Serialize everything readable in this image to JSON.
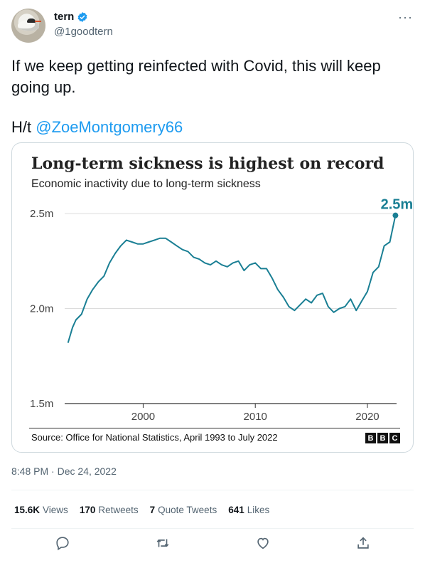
{
  "author": {
    "name": "tern",
    "handle": "@1goodtern",
    "verified": true
  },
  "tweet": {
    "text": "If we keep getting reinfected with Covid, this will keep going up.",
    "ht_prefix": "H/t ",
    "mention": "@ZoeMontgomery66",
    "timestamp": "8:48 PM · Dec 24, 2022"
  },
  "chart_card": {
    "title": "Long-term sickness is highest on record",
    "subtitle": "Economic inactivity due to long-term sickness",
    "source": "Source: Office for National Statistics, April 1993 to July 2022",
    "logo_letters": [
      "B",
      "B",
      "C"
    ],
    "line_color": "#1a7f94"
  },
  "chart_data": {
    "type": "line",
    "title": "Long-term sickness is highest on record",
    "subtitle": "Economic inactivity due to long-term sickness",
    "y_tick_labels": [
      "2.5m",
      "2.0m",
      "1.5m"
    ],
    "y_ticks": [
      2.5,
      2.0,
      1.5
    ],
    "x_tick_labels": [
      "2000",
      "2010",
      "2020"
    ],
    "x_ticks": [
      2000,
      2010,
      2020
    ],
    "xlim": [
      1993,
      2022.6
    ],
    "ylim": [
      1.5,
      2.5
    ],
    "grid": "horizontal",
    "annotation": {
      "label": "2.5m",
      "x": 2022.5,
      "y": 2.49
    },
    "series": [
      {
        "x": [
          1993.3,
          1993.7,
          1994.0,
          1994.5,
          1995.0,
          1995.5,
          1996.0,
          1996.5,
          1997.0,
          1997.5,
          1998.0,
          1998.5,
          1999.0,
          1999.5,
          2000.0,
          2000.5,
          2001.0,
          2001.5,
          2002.0,
          2002.5,
          2003.0,
          2003.5,
          2004.0,
          2004.5,
          2005.0,
          2005.5,
          2006.0,
          2006.5,
          2007.0,
          2007.5,
          2008.0,
          2008.5,
          2009.0,
          2009.5,
          2010.0,
          2010.5,
          2011.0,
          2011.5,
          2012.0,
          2012.5,
          2013.0,
          2013.5,
          2014.0,
          2014.5,
          2015.0,
          2015.5,
          2016.0,
          2016.5,
          2017.0,
          2017.5,
          2018.0,
          2018.5,
          2019.0,
          2019.5,
          2020.0,
          2020.5,
          2021.0,
          2021.5,
          2022.0,
          2022.5
        ],
        "values": [
          1.82,
          1.9,
          1.94,
          1.97,
          2.05,
          2.1,
          2.14,
          2.17,
          2.24,
          2.29,
          2.33,
          2.36,
          2.35,
          2.34,
          2.34,
          2.35,
          2.36,
          2.37,
          2.37,
          2.35,
          2.33,
          2.31,
          2.3,
          2.27,
          2.26,
          2.24,
          2.23,
          2.25,
          2.23,
          2.22,
          2.24,
          2.25,
          2.2,
          2.23,
          2.24,
          2.21,
          2.21,
          2.16,
          2.1,
          2.06,
          2.01,
          1.99,
          2.02,
          2.05,
          2.03,
          2.07,
          2.08,
          2.01,
          1.98,
          2.0,
          2.01,
          2.05,
          1.99,
          2.04,
          2.09,
          2.19,
          2.22,
          2.33,
          2.35,
          2.49
        ]
      }
    ]
  },
  "stats": [
    {
      "value": "15.6K",
      "label": "Views"
    },
    {
      "value": "170",
      "label": "Retweets"
    },
    {
      "value": "7",
      "label": "Quote Tweets"
    },
    {
      "value": "641",
      "label": "Likes"
    }
  ],
  "actions": [
    "reply-icon",
    "retweet-icon",
    "like-icon",
    "share-icon"
  ]
}
